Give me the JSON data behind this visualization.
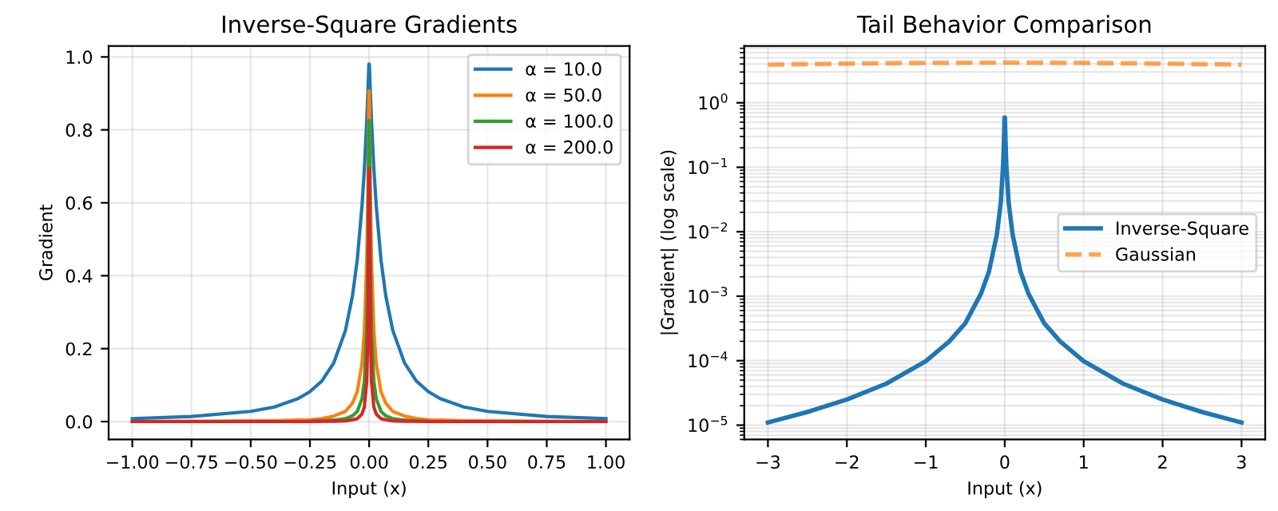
{
  "chart_data": [
    {
      "type": "line",
      "title": "Inverse-Square Gradients",
      "xlabel": "Input (x)",
      "ylabel": "Gradient",
      "x": [
        -1,
        -0.75,
        -0.5,
        -0.4,
        -0.3,
        -0.25,
        -0.2,
        -0.15,
        -0.1,
        -0.07,
        -0.05,
        -0.03,
        -0.02,
        -0.01,
        -0.005,
        -0.001,
        0.001,
        0.005,
        0.01,
        0.02,
        0.03,
        0.05,
        0.07,
        0.1,
        0.15,
        0.2,
        0.25,
        0.3,
        0.4,
        0.5,
        0.75,
        1
      ],
      "series": [
        {
          "name": "α = 10.0",
          "color": "#1f77b4",
          "values": [
            0.008,
            0.014,
            0.028,
            0.04,
            0.063,
            0.082,
            0.111,
            0.16,
            0.25,
            0.346,
            0.444,
            0.592,
            0.694,
            0.826,
            0.907,
            0.98,
            0.98,
            0.907,
            0.826,
            0.694,
            0.592,
            0.444,
            0.346,
            0.25,
            0.16,
            0.111,
            0.082,
            0.063,
            0.04,
            0.028,
            0.014,
            0.008
          ]
        },
        {
          "name": "α = 50.0",
          "color": "#ff7f0e",
          "values": [
            0.0,
            0.001,
            0.002,
            0.002,
            0.004,
            0.005,
            0.008,
            0.015,
            0.028,
            0.051,
            0.082,
            0.16,
            0.25,
            0.444,
            0.64,
            0.907,
            0.907,
            0.64,
            0.444,
            0.25,
            0.16,
            0.082,
            0.051,
            0.028,
            0.015,
            0.008,
            0.005,
            0.004,
            0.002,
            0.002,
            0.001,
            0.0
          ]
        },
        {
          "name": "α = 100.0",
          "color": "#2ca02c",
          "values": [
            null,
            null,
            null,
            null,
            null,
            0.001,
            0.002,
            0.004,
            0.008,
            0.016,
            0.028,
            0.063,
            0.111,
            0.25,
            0.444,
            0.826,
            0.826,
            0.444,
            0.25,
            0.111,
            0.063,
            0.028,
            0.016,
            0.008,
            0.004,
            0.002,
            0.001,
            null,
            null,
            null,
            null,
            null
          ]
        },
        {
          "name": "α = 200.0",
          "color": "#d62728",
          "values": [
            0.0,
            0.0,
            0.0,
            0.0,
            0.0,
            0.0,
            0.001,
            0.001,
            0.002,
            0.005,
            0.008,
            0.021,
            0.04,
            0.111,
            0.25,
            0.694,
            0.694,
            0.25,
            0.111,
            0.04,
            0.021,
            0.008,
            0.005,
            0.002,
            0.001,
            0.001,
            0.0,
            0.0,
            0.0,
            0.0,
            0.0,
            0.0
          ]
        }
      ],
      "xlim": [
        -1.1,
        1.1
      ],
      "xticks": [
        {
          "value": -1,
          "label": "−1.00"
        },
        {
          "value": -0.75,
          "label": "−0.75"
        },
        {
          "value": -0.5,
          "label": "−0.50"
        },
        {
          "value": -0.25,
          "label": "−0.25"
        },
        {
          "value": 0,
          "label": "0.00"
        },
        {
          "value": 0.25,
          "label": "0.25"
        },
        {
          "value": 0.5,
          "label": "0.50"
        },
        {
          "value": 0.75,
          "label": "0.75"
        },
        {
          "value": 1,
          "label": "1.00"
        }
      ],
      "ylim": [
        -0.049,
        1.03
      ],
      "yticks": [
        {
          "value": 0,
          "label": "0.0"
        },
        {
          "value": 0.2,
          "label": "0.2"
        },
        {
          "value": 0.4,
          "label": "0.4"
        },
        {
          "value": 0.6,
          "label": "0.6"
        },
        {
          "value": 0.8,
          "label": "0.8"
        },
        {
          "value": 1,
          "label": "1.0"
        }
      ],
      "grid": true,
      "legend": "top right"
    },
    {
      "type": "line",
      "title": "Tail Behavior Comparison",
      "xlabel": "Input (x)",
      "ylabel": "|Gradient| (log scale)",
      "log": "y",
      "series": [
        {
          "name": "Inverse-Square",
          "color": "#1f77b4",
          "x": [
            -3,
            -2.5,
            -2,
            -1.5,
            -1,
            -0.7,
            -0.5,
            -0.3,
            -0.2,
            -0.1,
            -0.05,
            -0.02,
            -0.01,
            -0.003,
            0.003,
            0.01,
            0.02,
            0.05,
            0.1,
            0.2,
            0.3,
            0.5,
            0.7,
            1,
            1.5,
            2,
            2.5,
            3
          ],
          "values": [
            1.1e-05,
            1.6e-05,
            2.5e-05,
            4.4e-05,
            9.8e-05,
            0.0002,
            0.00038,
            0.0011,
            0.0024,
            0.009,
            0.028,
            0.11,
            0.25,
            0.59,
            0.59,
            0.25,
            0.11,
            0.028,
            0.009,
            0.0024,
            0.0011,
            0.00038,
            0.0002,
            9.8e-05,
            4.4e-05,
            2.5e-05,
            1.6e-05,
            1.1e-05
          ]
        },
        {
          "name": "Gaussian",
          "color": "#ff7f0e",
          "line_style": "dashed",
          "x": [
            -3,
            -2,
            -1,
            0,
            1,
            2,
            3
          ],
          "values": [
            3.9,
            4.05,
            4.15,
            4.2,
            4.15,
            4.05,
            3.9
          ]
        }
      ],
      "xlim": [
        -3.3,
        3.3
      ],
      "xticks": [
        {
          "value": -3,
          "label": "−3"
        },
        {
          "value": -2,
          "label": "−2"
        },
        {
          "value": -1,
          "label": "−1"
        },
        0,
        1,
        2,
        3
      ],
      "ylim": [
        6e-06,
        7.6
      ],
      "yticks": [
        {
          "value": 1e-05,
          "label": "10$^{−5}$"
        },
        {
          "value": 0.0001,
          "label": "10$^{−4}$"
        },
        {
          "value": 0.001,
          "label": "10$^{−3}$"
        },
        {
          "value": 0.01,
          "label": "10$^{−2}$"
        },
        {
          "value": 0.1,
          "label": "10$^{−1}$"
        },
        {
          "value": 1,
          "label": "10$^{0}$"
        }
      ],
      "grid": true,
      "legend": "center right"
    }
  ]
}
